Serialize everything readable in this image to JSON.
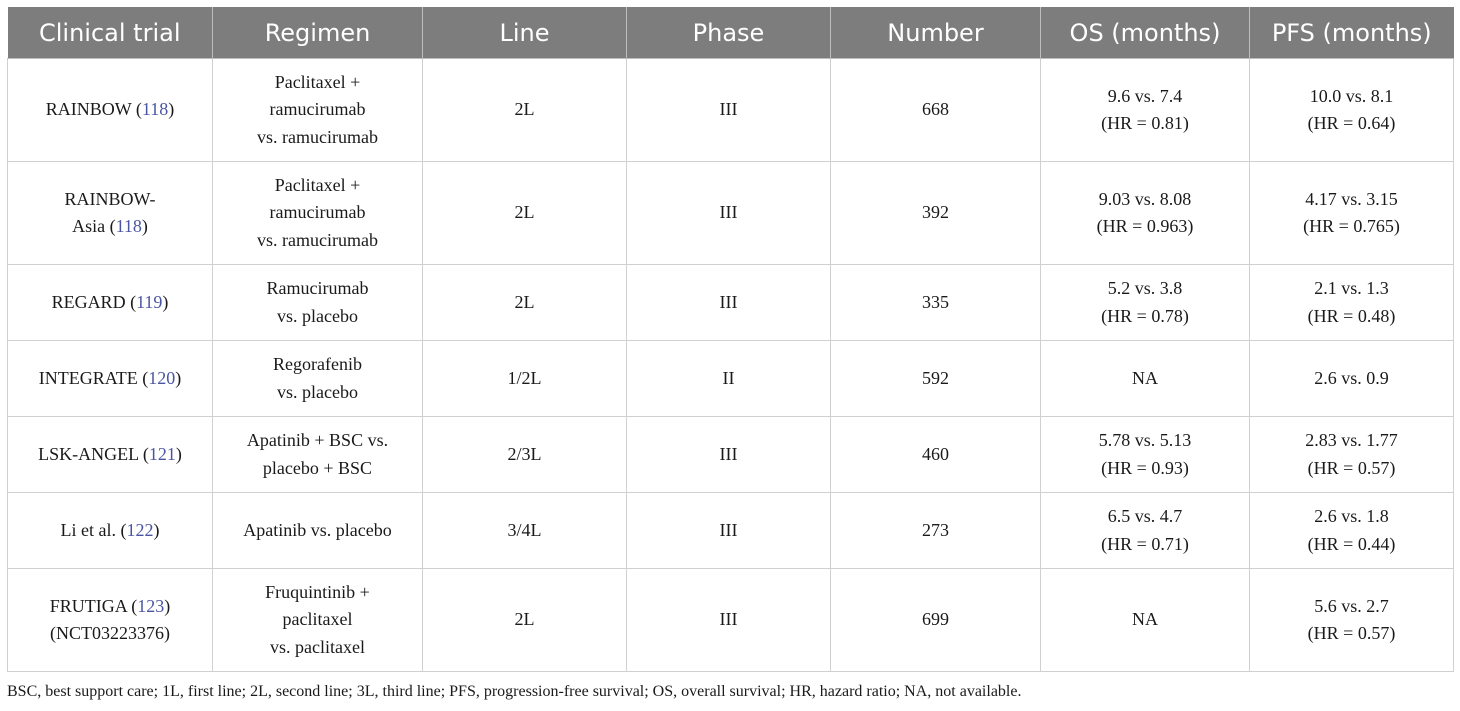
{
  "table": {
    "headers": [
      "Clinical trial",
      "Regimen",
      "Line",
      "Phase",
      "Number",
      "OS (months)",
      "PFS (months)"
    ],
    "rows": [
      {
        "trial": [
          "RAINBOW"
        ],
        "ref": "118",
        "regimen": [
          "Paclitaxel +",
          "ramucirumab",
          "vs. ramucirumab"
        ],
        "line": "2L",
        "phase": "III",
        "number": "668",
        "os": [
          "9.6 vs. 7.4",
          "(HR = 0.81)"
        ],
        "pfs": [
          "10.0 vs. 8.1",
          "(HR = 0.64)"
        ]
      },
      {
        "trial": [
          "RAINBOW-",
          "Asia"
        ],
        "ref": "118",
        "regimen": [
          "Paclitaxel +",
          "ramucirumab",
          "vs. ramucirumab"
        ],
        "line": "2L",
        "phase": "III",
        "number": "392",
        "os": [
          "9.03 vs. 8.08",
          "(HR = 0.963)"
        ],
        "pfs": [
          "4.17 vs. 3.15",
          "(HR = 0.765)"
        ]
      },
      {
        "trial": [
          "REGARD"
        ],
        "ref": "119",
        "regimen": [
          "Ramucirumab",
          "vs. placebo"
        ],
        "line": "2L",
        "phase": "III",
        "number": "335",
        "os": [
          "5.2 vs. 3.8",
          "(HR = 0.78)"
        ],
        "pfs": [
          "2.1 vs. 1.3",
          "(HR = 0.48)"
        ]
      },
      {
        "trial": [
          "INTEGRATE"
        ],
        "ref": "120",
        "regimen": [
          "Regorafenib",
          "vs. placebo"
        ],
        "line": "1/2L",
        "phase": "II",
        "number": "592",
        "os": [
          "NA"
        ],
        "pfs": [
          "2.6 vs. 0.9"
        ]
      },
      {
        "trial": [
          "LSK-ANGEL"
        ],
        "ref": "121",
        "regimen": [
          "Apatinib + BSC vs.",
          "placebo + BSC"
        ],
        "line": "2/3L",
        "phase": "III",
        "number": "460",
        "os": [
          "5.78 vs. 5.13",
          "(HR = 0.93)"
        ],
        "pfs": [
          "2.83 vs. 1.77",
          "(HR = 0.57)"
        ]
      },
      {
        "trial": [
          "Li et al."
        ],
        "ref": "122",
        "regimen": [
          "Apatinib vs. placebo"
        ],
        "line": "3/4L",
        "phase": "III",
        "number": "273",
        "os": [
          "6.5 vs. 4.7",
          "(HR = 0.71)"
        ],
        "pfs": [
          "2.6 vs. 1.8",
          "(HR = 0.44)"
        ]
      },
      {
        "trial": [
          "FRUTIGA",
          "(NCT03223376)"
        ],
        "ref": "123",
        "regimen": [
          "Fruquintinib +",
          "paclitaxel",
          "vs. paclitaxel"
        ],
        "line": "2L",
        "phase": "III",
        "number": "699",
        "os": [
          "NA"
        ],
        "pfs": [
          "5.6 vs. 2.7",
          "(HR = 0.57)"
        ]
      }
    ]
  },
  "footnote": "BSC, best support care; 1L, first line; 2L, second line; 3L, third line; PFS, progression-free survival; OS, overall survival; HR, hazard ratio; NA, not available."
}
